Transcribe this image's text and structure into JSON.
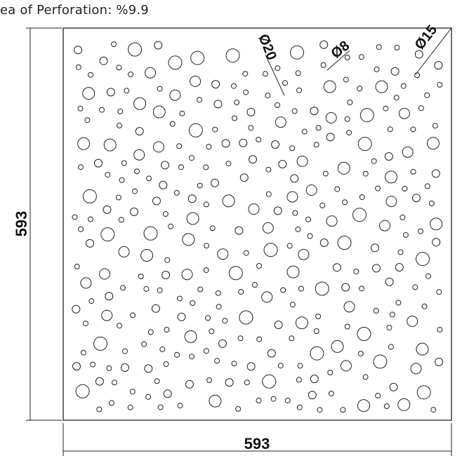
{
  "header": {
    "title": "ea of Perforation: %9.9"
  },
  "dimensions": {
    "width_label": "593",
    "height_label": "593"
  },
  "callouts": [
    {
      "label": "Ø20"
    },
    {
      "label": "Ø8"
    },
    {
      "label": "Ø15"
    }
  ]
}
